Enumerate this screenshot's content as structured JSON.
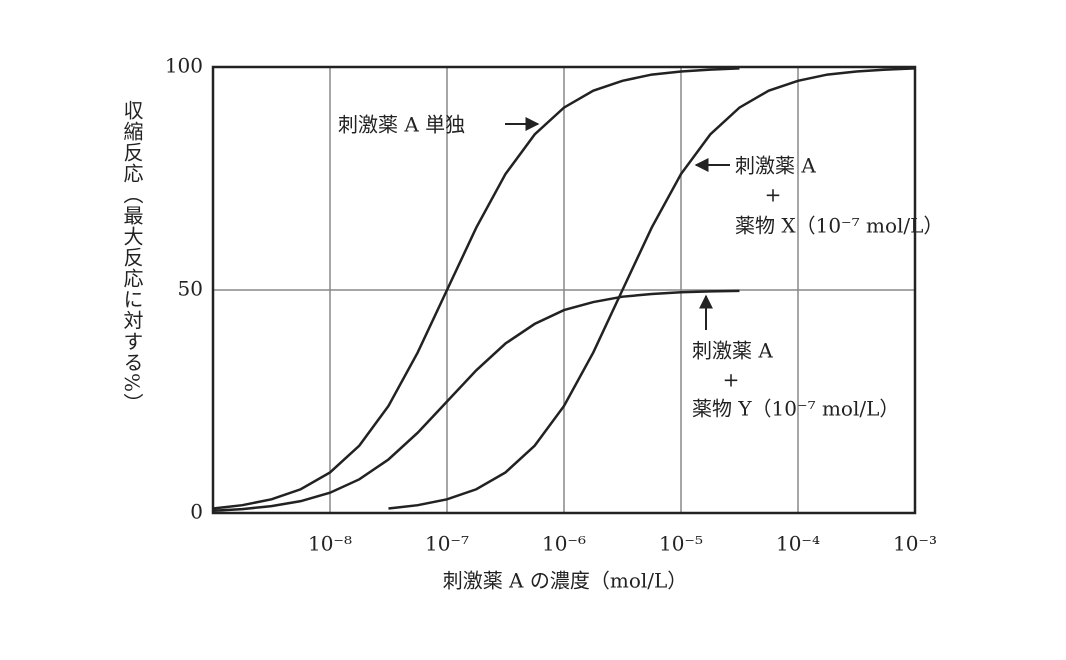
{
  "chart_data": {
    "type": "line",
    "x_label": "刺激薬 A の濃度（mol/L）",
    "y_label": "収縮反応（最大反応に対する%）",
    "log_x": true,
    "grid": true,
    "xlim": [
      1e-09,
      0.001
    ],
    "xticks": [
      {
        "value": 1e-08,
        "label": "10⁻⁸"
      },
      {
        "value": 1e-07,
        "label": "10⁻⁷"
      },
      {
        "value": 1e-06,
        "label": "10⁻⁶"
      },
      {
        "value": 1e-05,
        "label": "10⁻⁵"
      },
      {
        "value": 0.0001,
        "label": "10⁻⁴"
      },
      {
        "value": 0.001,
        "label": "10⁻³"
      }
    ],
    "ylim": [
      0,
      100
    ],
    "yticks": [
      0,
      50,
      100
    ],
    "series": [
      {
        "color": "#222222",
        "x": [
          1e-09,
          1.78e-09,
          3.16e-09,
          5.62e-09,
          1e-08,
          1.78e-08,
          3.16e-08,
          5.62e-08,
          1e-07,
          1.78e-07,
          3.16e-07,
          5.62e-07,
          1e-06,
          1.78e-06,
          3.16e-06,
          5.62e-06,
          1e-05,
          1.78e-05,
          3.16e-05
        ],
        "values": [
          1.0,
          1.75,
          3.07,
          5.32,
          9.09,
          15.1,
          24.0,
          36.0,
          50,
          64.0,
          76.0,
          84.9,
          90.9,
          94.7,
          96.9,
          98.3,
          99.0,
          99.4,
          99.7
        ]
      },
      {
        "color": "#222222",
        "x": [
          3.16e-08,
          5.62e-08,
          1e-07,
          1.78e-07,
          3.16e-07,
          5.62e-07,
          1e-06,
          1.78e-06,
          3.16e-06,
          5.62e-06,
          1e-05,
          1.78e-05,
          3.16e-05,
          5.62e-05,
          0.0001,
          0.000178,
          0.000316,
          0.000562,
          0.001
        ],
        "values": [
          1.0,
          1.75,
          3.07,
          5.32,
          9.09,
          15.1,
          24.0,
          36.0,
          50,
          64.0,
          76.0,
          84.9,
          90.9,
          94.7,
          96.9,
          98.3,
          99.0,
          99.4,
          99.7
        ]
      },
      {
        "color": "#222222",
        "x": [
          1e-09,
          1.78e-09,
          3.16e-09,
          5.62e-09,
          1e-08,
          1.78e-08,
          3.16e-08,
          5.62e-08,
          1e-07,
          1.78e-07,
          3.16e-07,
          5.62e-07,
          1e-06,
          1.78e-06,
          3.16e-06,
          5.62e-06,
          1e-05,
          1.78e-05,
          3.16e-05
        ],
        "values": [
          0.5,
          0.87,
          1.54,
          2.66,
          4.55,
          7.55,
          12.0,
          18.0,
          25,
          32.0,
          38.0,
          42.4,
          45.5,
          47.3,
          48.5,
          49.1,
          49.5,
          49.7,
          49.8
        ]
      }
    ],
    "annotations": [
      [
        "刺激薬 A 単独"
      ],
      [
        "刺激薬 A",
        "+",
        "薬物 X（10⁻⁷ mol/L）"
      ],
      [
        "刺激薬 A",
        "+",
        "薬物 Y（10⁻⁷ mol/L）"
      ]
    ]
  }
}
